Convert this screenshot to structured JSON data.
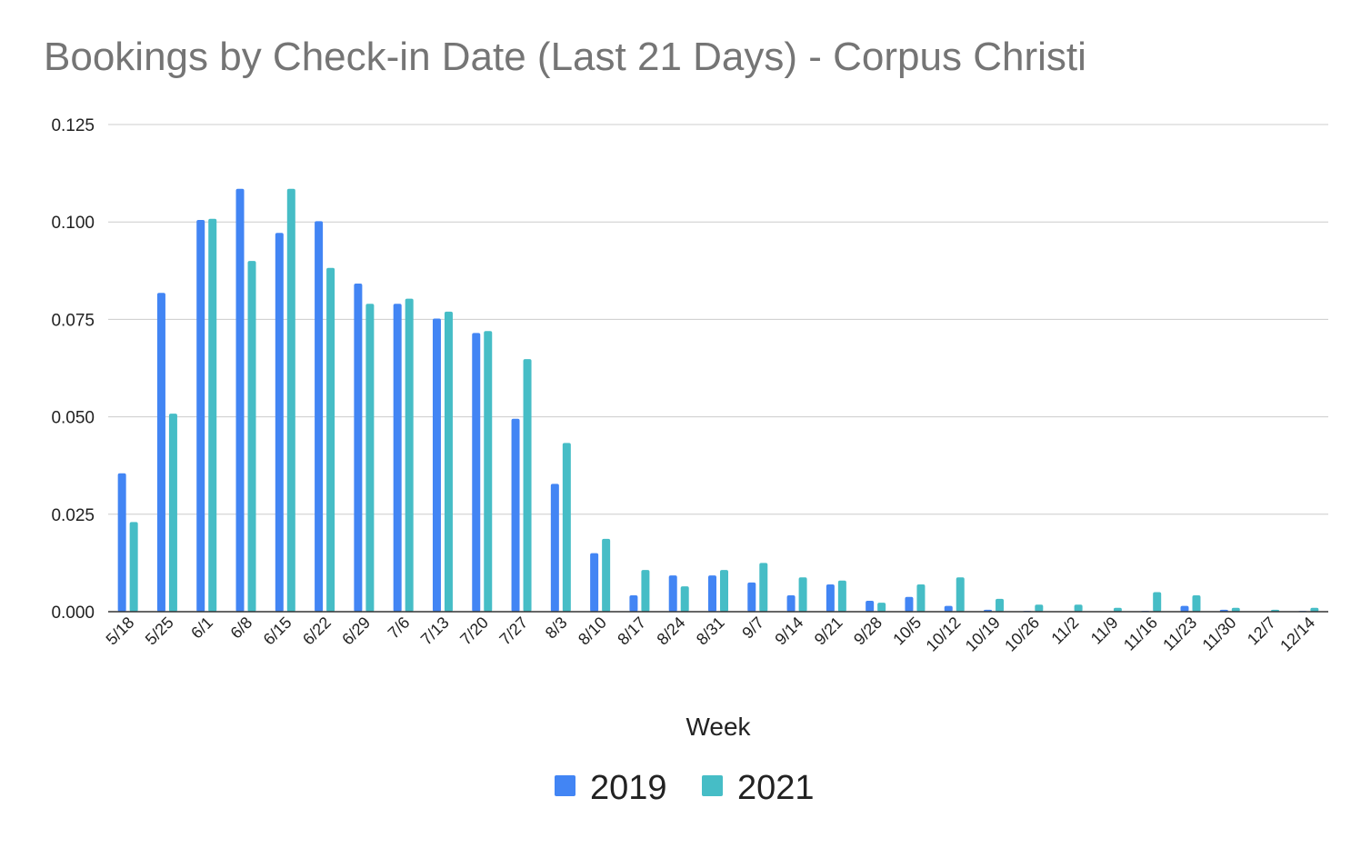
{
  "chart_data": {
    "type": "bar",
    "title": "Bookings by Check-in Date (Last 21 Days) - Corpus Christi",
    "xlabel": "Week",
    "ylabel": "",
    "ylim": [
      0,
      0.125
    ],
    "yticks": [
      "0.000",
      "0.025",
      "0.050",
      "0.075",
      "0.100",
      "0.125"
    ],
    "grid": true,
    "legend_position": "bottom",
    "categories": [
      "5/18",
      "5/25",
      "6/1",
      "6/8",
      "6/15",
      "6/22",
      "6/29",
      "7/6",
      "7/13",
      "7/20",
      "7/27",
      "8/3",
      "8/10",
      "8/17",
      "8/24",
      "8/31",
      "9/7",
      "9/14",
      "9/21",
      "9/28",
      "10/5",
      "10/12",
      "10/19",
      "10/26",
      "11/2",
      "11/9",
      "11/16",
      "11/23",
      "11/30",
      "12/7",
      "12/14"
    ],
    "series": [
      {
        "name": "2019",
        "color": "#4285f4",
        "values": [
          0.0355,
          0.0818,
          0.1005,
          0.1085,
          0.0972,
          0.1002,
          0.0842,
          0.079,
          0.0752,
          0.0715,
          0.0495,
          0.0328,
          0.015,
          0.0042,
          0.0093,
          0.0093,
          0.0075,
          0.0042,
          0.007,
          0.0028,
          0.0038,
          0.0015,
          0.0005,
          0.0002,
          0.0001,
          0.0001,
          0.0002,
          0.0015,
          0.0005,
          0.0001,
          0.0002
        ]
      },
      {
        "name": "2021",
        "color": "#46bdc6",
        "values": [
          0.023,
          0.0508,
          0.1008,
          0.09,
          0.1085,
          0.0882,
          0.079,
          0.0803,
          0.077,
          0.072,
          0.0648,
          0.0433,
          0.0187,
          0.0107,
          0.0065,
          0.0107,
          0.0125,
          0.0088,
          0.008,
          0.0023,
          0.007,
          0.0088,
          0.0033,
          0.0018,
          0.0018,
          0.001,
          0.005,
          0.0042,
          0.001,
          0.0005,
          0.001
        ]
      }
    ]
  }
}
